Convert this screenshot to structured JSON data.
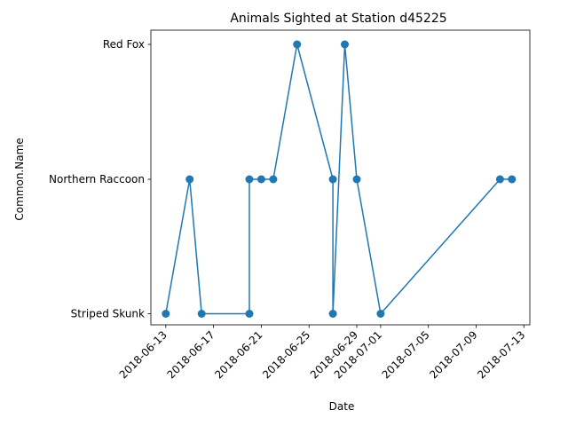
{
  "chart_data": {
    "type": "line",
    "title": "Animals Sighted at Station d45225",
    "xlabel": "Date",
    "ylabel": "Common.Name",
    "categories_y": [
      "Striped Skunk",
      "Northern Raccoon",
      "Red Fox"
    ],
    "x_ticks": [
      "2018-06-13",
      "2018-06-17",
      "2018-06-21",
      "2018-06-25",
      "2018-06-29",
      "2018-07-01",
      "2018-07-05",
      "2018-07-09",
      "2018-07-13"
    ],
    "xlim": [
      "2018-06-11T18:00",
      "2018-07-13T12:00"
    ],
    "grid": false,
    "legend": "none",
    "series": [
      {
        "color": "#1f77b4",
        "marker": "circle",
        "points": [
          {
            "x": "2018-06-13",
            "y": "Striped Skunk"
          },
          {
            "x": "2018-06-15",
            "y": "Northern Raccoon"
          },
          {
            "x": "2018-06-16",
            "y": "Striped Skunk"
          },
          {
            "x": "2018-06-20",
            "y": "Striped Skunk"
          },
          {
            "x": "2018-06-20",
            "y": "Northern Raccoon"
          },
          {
            "x": "2018-06-21",
            "y": "Northern Raccoon"
          },
          {
            "x": "2018-06-22",
            "y": "Northern Raccoon"
          },
          {
            "x": "2018-06-24",
            "y": "Red Fox"
          },
          {
            "x": "2018-06-27",
            "y": "Northern Raccoon"
          },
          {
            "x": "2018-06-27",
            "y": "Striped Skunk"
          },
          {
            "x": "2018-06-28",
            "y": "Red Fox"
          },
          {
            "x": "2018-06-29",
            "y": "Northern Raccoon"
          },
          {
            "x": "2018-07-01",
            "y": "Striped Skunk"
          },
          {
            "x": "2018-07-11",
            "y": "Northern Raccoon"
          },
          {
            "x": "2018-07-12",
            "y": "Northern Raccoon"
          }
        ]
      }
    ]
  }
}
